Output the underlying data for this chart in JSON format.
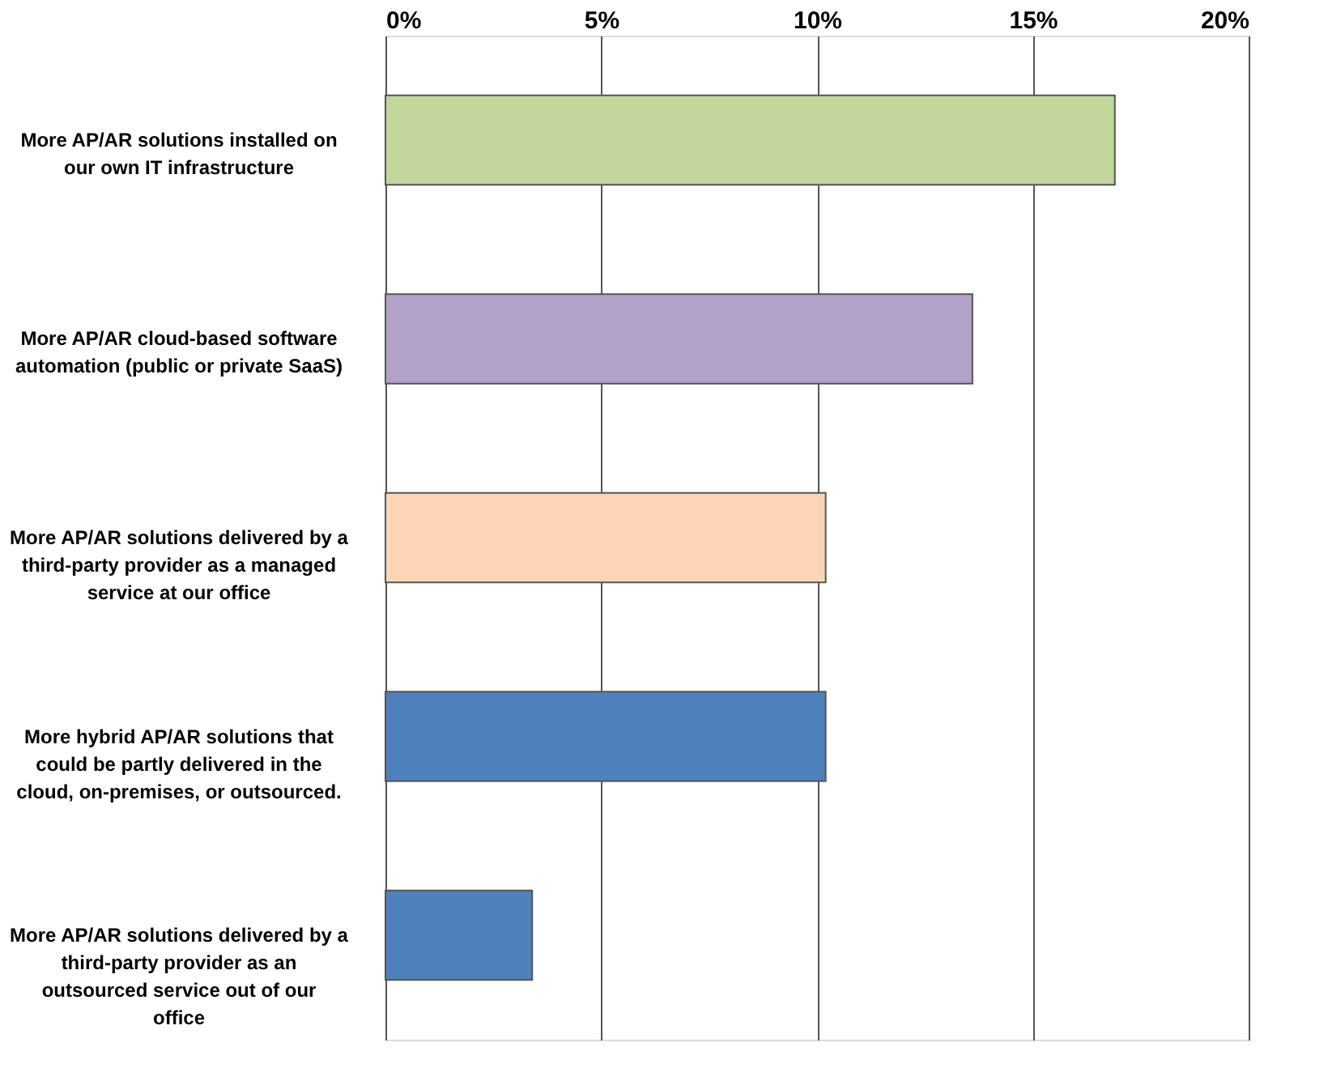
{
  "chart_data": {
    "type": "bar",
    "orientation": "horizontal",
    "categories": [
      "More AP/AR solutions installed on our own IT infrastructure",
      "More AP/AR cloud-based software automation (public or private SaaS)",
      "More AP/AR solutions delivered by a third-party provider as a managed service at our office",
      "More hybrid AP/AR solutions that could be partly delivered in the cloud, on-premises, or outsourced.",
      "More AP/AR solutions delivered by a third-party provider as an outsourced service  out of our office"
    ],
    "values": [
      16.9,
      13.6,
      10.2,
      10.2,
      3.4
    ],
    "colors": [
      "#c3d69b",
      "#b3a2c7",
      "#fcd5b4",
      "#4f81bd",
      "#4f81bd"
    ],
    "xlim": [
      0,
      20
    ],
    "xticks": [
      {
        "value": 0,
        "label": "0%"
      },
      {
        "value": 5,
        "label": "5%"
      },
      {
        "value": 10,
        "label": "10%"
      },
      {
        "value": 15,
        "label": "15%"
      },
      {
        "value": 20,
        "label": "20%"
      }
    ],
    "grid": "x"
  }
}
